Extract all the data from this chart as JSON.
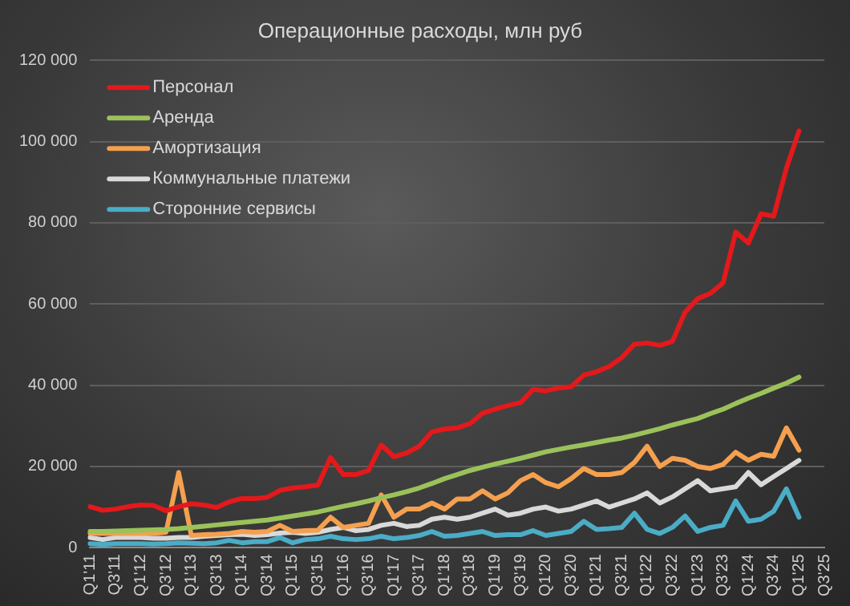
{
  "chart_data": {
    "type": "line",
    "title": "Операционные расходы, млн руб",
    "categories": [
      "Q1'11",
      null,
      "Q3'11",
      null,
      "Q1'12",
      null,
      "Q3'12",
      null,
      "Q1'13",
      null,
      "Q3'13",
      null,
      "Q1'14",
      null,
      "Q3'14",
      null,
      "Q1'15",
      null,
      "Q3'15",
      null,
      "Q1'16",
      null,
      "Q3'16",
      null,
      "Q1'17",
      null,
      "Q3'17",
      null,
      "Q1'18",
      null,
      "Q3'18",
      null,
      "Q1'19",
      null,
      "Q3'19",
      null,
      "Q1'20",
      null,
      "Q3'20",
      null,
      "Q1'21",
      null,
      "Q3'21",
      null,
      "Q1'22",
      null,
      "Q3'22",
      null,
      "Q1'23",
      null,
      "Q3'23",
      null,
      "Q1'24",
      null,
      "Q3'24",
      null,
      "Q1'25",
      null,
      "Q3'25"
    ],
    "series": [
      {
        "name": "Персонал",
        "color": "#e3191b",
        "values": [
          10100,
          9200,
          9500,
          10100,
          10500,
          10400,
          9100,
          10100,
          10800,
          10500,
          9900,
          11300,
          12100,
          12100,
          12400,
          14100,
          14700,
          15000,
          15400,
          22200,
          18000,
          18000,
          19000,
          25300,
          22400,
          23300,
          25000,
          28500,
          29200,
          29500,
          30500,
          33100,
          34100,
          35000,
          35700,
          39000,
          38600,
          39300,
          39600,
          42500,
          43300,
          44600,
          46800,
          50100,
          50400,
          49800,
          50800,
          58000,
          61300,
          62600,
          65200,
          77700,
          75000,
          82200,
          81600,
          93400,
          102600,
          null,
          null
        ]
      },
      {
        "name": "Аренда",
        "color": "#9bc25a",
        "values": [
          4000,
          4000,
          4100,
          4200,
          4300,
          4400,
          4500,
          4700,
          5000,
          5300,
          5600,
          5900,
          6200,
          6500,
          6800,
          7300,
          7800,
          8300,
          8800,
          9500,
          10200,
          10800,
          11500,
          12300,
          13000,
          13800,
          14700,
          15800,
          17000,
          18000,
          19000,
          19800,
          20600,
          21300,
          22000,
          22800,
          23600,
          24200,
          24800,
          25300,
          25900,
          26500,
          27000,
          27700,
          28500,
          29300,
          30200,
          31000,
          31800,
          33000,
          34100,
          35500,
          36800,
          38000,
          39300,
          40500,
          42000,
          null,
          null
        ]
      },
      {
        "name": "Амортизация",
        "color": "#f5a04f",
        "values": [
          3500,
          3500,
          3500,
          3500,
          3500,
          3500,
          3800,
          18500,
          3000,
          3200,
          3300,
          3500,
          4000,
          3800,
          4000,
          5500,
          4000,
          4200,
          4300,
          7500,
          5000,
          5500,
          6000,
          13000,
          7500,
          9500,
          9500,
          11000,
          9500,
          12000,
          12000,
          14000,
          12000,
          13500,
          16500,
          18000,
          16000,
          15000,
          17000,
          19500,
          18000,
          18000,
          18500,
          21000,
          25000,
          20000,
          22000,
          21500,
          20000,
          19500,
          20500,
          23500,
          21500,
          23000,
          22500,
          29500,
          24000,
          null,
          null
        ]
      },
      {
        "name": "Коммунальные платежи",
        "color": "#d9d9d9",
        "values": [
          2500,
          2000,
          2500,
          2500,
          2500,
          2300,
          2300,
          2500,
          2500,
          2800,
          3000,
          3200,
          3300,
          3000,
          3200,
          3600,
          3800,
          3500,
          3800,
          4500,
          5000,
          4200,
          4500,
          5500,
          6000,
          5200,
          5500,
          7000,
          7500,
          7000,
          7500,
          8500,
          9500,
          8000,
          8500,
          9500,
          10000,
          9000,
          9500,
          10500,
          11500,
          10000,
          11000,
          12000,
          13500,
          11000,
          12500,
          14500,
          16500,
          14000,
          14500,
          15000,
          18500,
          15500,
          17500,
          19500,
          21500,
          null,
          null
        ]
      },
      {
        "name": "Сторонние сервисы",
        "color": "#4bacc6",
        "values": [
          1000,
          800,
          1000,
          1000,
          1000,
          900,
          1000,
          1200,
          1100,
          1000,
          1200,
          1800,
          1200,
          1500,
          1500,
          2500,
          1200,
          2000,
          2200,
          2800,
          2200,
          2000,
          2200,
          2800,
          2200,
          2500,
          3000,
          4000,
          2800,
          3000,
          3500,
          4000,
          3000,
          3200,
          3200,
          4200,
          3000,
          3500,
          4000,
          6500,
          4500,
          4700,
          5000,
          8500,
          4500,
          3500,
          5000,
          7800,
          4000,
          5000,
          5500,
          11500,
          6500,
          7000,
          9000,
          14500,
          7500,
          null,
          null
        ]
      }
    ],
    "ylim": [
      0,
      120000
    ],
    "yticks": [
      {
        "value": 0,
        "label": "0"
      },
      {
        "value": 20000,
        "label": "20 000"
      },
      {
        "value": 40000,
        "label": "40 000"
      },
      {
        "value": 60000,
        "label": "60 000"
      },
      {
        "value": 80000,
        "label": "80 000"
      },
      {
        "value": 100000,
        "label": "100 000"
      },
      {
        "value": 120000,
        "label": "120 000"
      }
    ],
    "grid": "y",
    "legend": "top left",
    "marker": "none",
    "line_style": "solid"
  }
}
